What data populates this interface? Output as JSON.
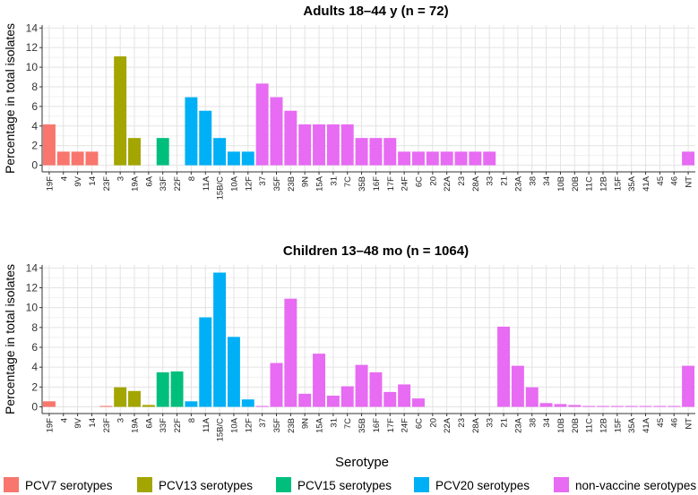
{
  "chart_data": {
    "type": "bar",
    "xlabel": "Serotype",
    "ylabel": "Percentage in total isolates",
    "ylim": [
      0,
      14
    ],
    "yticks": [
      0,
      2,
      4,
      6,
      8,
      10,
      12,
      14
    ],
    "grid": true,
    "legend_position": "bottom",
    "categories": [
      "19F",
      "4",
      "9V",
      "14",
      "23F",
      "3",
      "19A",
      "6A",
      "33F",
      "22F",
      "8",
      "11A",
      "15B/C",
      "10A",
      "12F",
      "37",
      "35F",
      "23B",
      "9N",
      "15A",
      "31",
      "7C",
      "35B",
      "16F",
      "17F",
      "24F",
      "6C",
      "20",
      "22A",
      "23",
      "28A",
      "33",
      "21",
      "23A",
      "38",
      "34",
      "10B",
      "20B",
      "11C",
      "12B",
      "15F",
      "35A",
      "41A",
      "45",
      "46",
      "NT"
    ],
    "category_group": [
      "PCV7",
      "PCV7",
      "PCV7",
      "PCV7",
      "PCV7",
      "PCV13",
      "PCV13",
      "PCV13",
      "PCV15",
      "PCV15",
      "PCV20",
      "PCV20",
      "PCV20",
      "PCV20",
      "PCV20",
      "NV",
      "NV",
      "NV",
      "NV",
      "NV",
      "NV",
      "NV",
      "NV",
      "NV",
      "NV",
      "NV",
      "NV",
      "NV",
      "NV",
      "NV",
      "NV",
      "NV",
      "NV",
      "NV",
      "NV",
      "NV",
      "NV",
      "NV",
      "NV",
      "NV",
      "NV",
      "NV",
      "NV",
      "NV",
      "NV",
      "NV"
    ],
    "groups": [
      {
        "key": "PCV7",
        "label": "PCV7 serotypes",
        "color": "#F8766D"
      },
      {
        "key": "PCV13",
        "label": "PCV13 serotypes",
        "color": "#A3A500"
      },
      {
        "key": "PCV15",
        "label": "PCV15 serotypes",
        "color": "#00BF7D"
      },
      {
        "key": "PCV20",
        "label": "PCV20 serotypes",
        "color": "#00B0F6"
      },
      {
        "key": "NV",
        "label": "non-vaccine serotypes",
        "color": "#E76BF3"
      }
    ],
    "panels": [
      {
        "title": "Adults 18–44 y (n = 72)",
        "values": [
          4.17,
          1.39,
          1.39,
          1.39,
          0,
          11.11,
          2.78,
          0,
          2.78,
          0,
          6.94,
          5.56,
          2.78,
          1.39,
          1.39,
          8.33,
          6.94,
          5.56,
          4.17,
          4.17,
          4.17,
          4.17,
          2.78,
          2.78,
          2.78,
          1.39,
          1.39,
          1.39,
          1.39,
          1.39,
          1.39,
          1.39,
          0,
          0,
          0,
          0,
          0,
          0,
          0,
          0,
          0,
          0,
          0,
          0,
          0,
          1.39
        ]
      },
      {
        "title": "Children 13–48 mo (n = 1064)",
        "values": [
          0.56,
          0,
          0,
          0,
          0.09,
          1.97,
          1.6,
          0.19,
          3.48,
          3.57,
          0.56,
          9.02,
          13.53,
          7.05,
          0.75,
          0.09,
          4.42,
          10.9,
          1.32,
          5.36,
          1.13,
          2.07,
          4.23,
          3.48,
          1.5,
          2.26,
          0.85,
          0,
          0,
          0,
          0,
          0,
          8.08,
          4.14,
          1.97,
          0.38,
          0.28,
          0.19,
          0.09,
          0.09,
          0.09,
          0.09,
          0.09,
          0.09,
          0.09,
          4.14
        ]
      }
    ]
  }
}
